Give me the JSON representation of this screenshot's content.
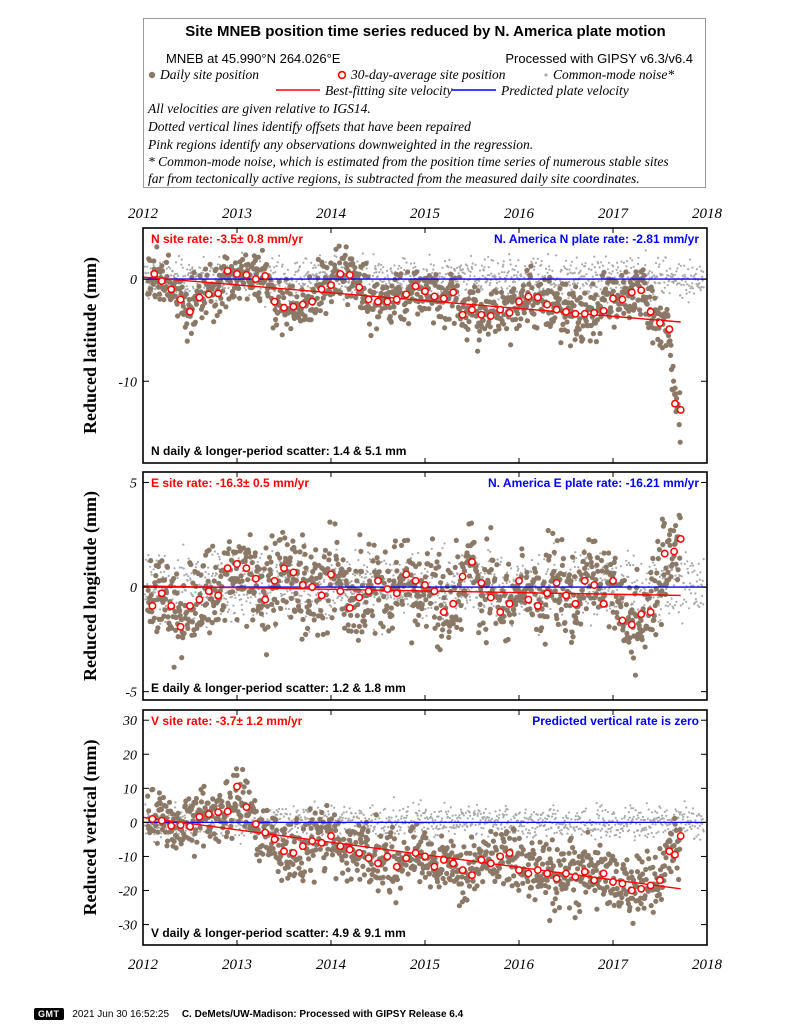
{
  "legend": {
    "title": "Site MNEB position time series reduced by N. America plate motion",
    "site_location": "MNEB at 45.990°N 264.026°E",
    "processing": "Processed with GIPSY v6.3/v6.4",
    "key_daily": "Daily site position",
    "key_avg": "30-day-average site position",
    "key_cm": "Common-mode noise*",
    "key_best": "Best-fitting site velocity",
    "key_pred": "Predicted plate velocity",
    "note1": "All velocities are given relative to IGS14.",
    "note2": "Dotted vertical lines identify offsets that have been repaired",
    "note3": "Pink regions identify any observations downweighted in the regression.",
    "note4": "* Common-mode noise, which is estimated from the position time series of numerous stable sites",
    "note5": "far from tectonically active regions, is subtracted from the measured daily site coordinates."
  },
  "colors": {
    "daily": "#8b7866",
    "common_mode": "#a9a9a9",
    "best_fit": "#ff0000",
    "predicted": "#0000ff",
    "avg_marker": "#ff0000"
  },
  "chart_data": [
    {
      "type": "scatter",
      "component": "N",
      "ylabel": "Reduced latitude (mm)",
      "xlim": [
        2012.0,
        2018.0
      ],
      "ylim": [
        -18,
        5
      ],
      "x_ticks": [
        "2012",
        "2013",
        "2014",
        "2015",
        "2016",
        "2017",
        "2018"
      ],
      "y_ticks": [
        0,
        -10
      ],
      "site_rate_label": "N site rate:  -3.5± 0.8 mm/yr",
      "plate_rate_label": "N. America N plate rate: -2.81 mm/yr",
      "scatter_label": "N daily & longer-period scatter:   1.4 &   5.1 mm",
      "best_fit_line": {
        "x": [
          2012.0,
          2017.72
        ],
        "y": [
          0.2,
          -4.2
        ]
      },
      "predicted_line_y": 0,
      "avg_series": [
        [
          2012.12,
          0.5
        ],
        [
          2012.2,
          -0.2
        ],
        [
          2012.3,
          -1.0
        ],
        [
          2012.4,
          -2.0
        ],
        [
          2012.5,
          -3.2
        ],
        [
          2012.6,
          -1.8
        ],
        [
          2012.7,
          -1.5
        ],
        [
          2012.8,
          -1.4
        ],
        [
          2012.9,
          0.8
        ],
        [
          2013.0,
          0.5
        ],
        [
          2013.1,
          0.4
        ],
        [
          2013.2,
          0.0
        ],
        [
          2013.3,
          0.3
        ],
        [
          2013.4,
          -2.2
        ],
        [
          2013.5,
          -2.8
        ],
        [
          2013.6,
          -2.7
        ],
        [
          2013.7,
          -2.5
        ],
        [
          2013.8,
          -2.2
        ],
        [
          2013.9,
          -1.0
        ],
        [
          2014.0,
          -0.6
        ],
        [
          2014.1,
          0.5
        ],
        [
          2014.2,
          0.4
        ],
        [
          2014.3,
          -0.8
        ],
        [
          2014.4,
          -2.0
        ],
        [
          2014.5,
          -2.2
        ],
        [
          2014.6,
          -2.2
        ],
        [
          2014.7,
          -2.0
        ],
        [
          2014.8,
          -1.5
        ],
        [
          2014.9,
          -0.7
        ],
        [
          2015.0,
          -1.2
        ],
        [
          2015.1,
          -1.7
        ],
        [
          2015.2,
          -1.9
        ],
        [
          2015.3,
          -1.3
        ],
        [
          2015.4,
          -3.5
        ],
        [
          2015.5,
          -3.0
        ],
        [
          2015.6,
          -3.5
        ],
        [
          2015.7,
          -3.6
        ],
        [
          2015.8,
          -3.0
        ],
        [
          2015.9,
          -3.3
        ],
        [
          2016.0,
          -2.2
        ],
        [
          2016.1,
          -1.7
        ],
        [
          2016.2,
          -1.8
        ],
        [
          2016.3,
          -2.5
        ],
        [
          2016.4,
          -3.0
        ],
        [
          2016.5,
          -3.2
        ],
        [
          2016.6,
          -3.4
        ],
        [
          2016.7,
          -3.4
        ],
        [
          2016.8,
          -3.3
        ],
        [
          2016.9,
          -3.1
        ],
        [
          2017.0,
          -1.9
        ],
        [
          2017.1,
          -2.0
        ],
        [
          2017.2,
          -1.3
        ],
        [
          2017.3,
          -1.1
        ],
        [
          2017.4,
          -3.2
        ],
        [
          2017.5,
          -4.3
        ],
        [
          2017.6,
          -4.9
        ],
        [
          2017.66,
          -12.2
        ],
        [
          2017.72,
          -12.8
        ]
      ]
    },
    {
      "type": "scatter",
      "component": "E",
      "ylabel": "Reduced longitude (mm)",
      "xlim": [
        2012.0,
        2018.0
      ],
      "ylim": [
        -5.4,
        5.5
      ],
      "x_ticks": [
        "2012",
        "2013",
        "2014",
        "2015",
        "2016",
        "2017",
        "2018"
      ],
      "y_ticks": [
        5,
        0,
        -5
      ],
      "site_rate_label": "E site rate:  -16.3± 0.5 mm/yr",
      "plate_rate_label": "N. America E plate rate: -16.21 mm/yr",
      "scatter_label": "E daily & longer-period scatter:   1.2 &   1.8 mm",
      "best_fit_line": {
        "x": [
          2012.0,
          2017.72
        ],
        "y": [
          0.05,
          -0.4
        ]
      },
      "predicted_line_y": 0,
      "avg_series": [
        [
          2012.1,
          -0.9
        ],
        [
          2012.2,
          -0.3
        ],
        [
          2012.3,
          -0.9
        ],
        [
          2012.4,
          -1.9
        ],
        [
          2012.5,
          -0.9
        ],
        [
          2012.6,
          -0.6
        ],
        [
          2012.7,
          -0.2
        ],
        [
          2012.8,
          -0.4
        ],
        [
          2012.9,
          0.9
        ],
        [
          2013.0,
          1.1
        ],
        [
          2013.1,
          0.9
        ],
        [
          2013.2,
          0.4
        ],
        [
          2013.3,
          -0.6
        ],
        [
          2013.4,
          0.3
        ],
        [
          2013.5,
          0.9
        ],
        [
          2013.6,
          0.7
        ],
        [
          2013.7,
          0.1
        ],
        [
          2013.8,
          0.0
        ],
        [
          2013.9,
          -0.4
        ],
        [
          2014.0,
          0.6
        ],
        [
          2014.1,
          -0.2
        ],
        [
          2014.2,
          -1.0
        ],
        [
          2014.3,
          -0.5
        ],
        [
          2014.4,
          -0.2
        ],
        [
          2014.5,
          0.3
        ],
        [
          2014.6,
          -0.1
        ],
        [
          2014.7,
          -0.3
        ],
        [
          2014.8,
          0.6
        ],
        [
          2014.9,
          0.3
        ],
        [
          2015.0,
          0.1
        ],
        [
          2015.1,
          -0.2
        ],
        [
          2015.2,
          -1.2
        ],
        [
          2015.3,
          -0.8
        ],
        [
          2015.4,
          0.5
        ],
        [
          2015.5,
          1.2
        ],
        [
          2015.6,
          0.2
        ],
        [
          2015.7,
          -0.5
        ],
        [
          2015.8,
          -1.2
        ],
        [
          2015.9,
          -0.8
        ],
        [
          2016.0,
          0.3
        ],
        [
          2016.1,
          -0.6
        ],
        [
          2016.2,
          -0.9
        ],
        [
          2016.3,
          -0.3
        ],
        [
          2016.4,
          0.2
        ],
        [
          2016.5,
          -0.4
        ],
        [
          2016.6,
          -0.8
        ],
        [
          2016.7,
          0.3
        ],
        [
          2016.8,
          0.1
        ],
        [
          2016.9,
          -0.8
        ],
        [
          2017.0,
          0.3
        ],
        [
          2017.1,
          -1.6
        ],
        [
          2017.2,
          -1.8
        ],
        [
          2017.3,
          -1.3
        ],
        [
          2017.4,
          -1.2
        ],
        [
          2017.55,
          1.6
        ],
        [
          2017.65,
          1.7
        ],
        [
          2017.72,
          2.3
        ]
      ]
    },
    {
      "type": "scatter",
      "component": "V",
      "ylabel": "Reduced vertical (mm)",
      "xlim": [
        2012.0,
        2018.0
      ],
      "ylim": [
        -36,
        33
      ],
      "x_ticks": [
        "2012",
        "2013",
        "2014",
        "2015",
        "2016",
        "2017",
        "2018"
      ],
      "y_ticks": [
        30,
        20,
        10,
        0,
        -10,
        -20,
        -30
      ],
      "site_rate_label": "V site rate:  -3.7± 1.2 mm/yr",
      "plate_rate_label": "Predicted vertical rate is zero",
      "scatter_label": "V daily & longer-period scatter:   4.9 &   9.1 mm",
      "best_fit_line": {
        "x": [
          2012.0,
          2017.72
        ],
        "y": [
          1.5,
          -19.5
        ]
      },
      "predicted_line_y": 0,
      "avg_series": [
        [
          2012.1,
          1.0
        ],
        [
          2012.2,
          0.5
        ],
        [
          2012.3,
          -1.0
        ],
        [
          2012.4,
          -0.8
        ],
        [
          2012.5,
          -1.2
        ],
        [
          2012.6,
          1.6
        ],
        [
          2012.7,
          2.4
        ],
        [
          2012.8,
          3.0
        ],
        [
          2012.9,
          3.2
        ],
        [
          2013.0,
          10.5
        ],
        [
          2013.1,
          4.5
        ],
        [
          2013.2,
          -0.5
        ],
        [
          2013.3,
          -3.0
        ],
        [
          2013.4,
          -5.0
        ],
        [
          2013.5,
          -8.5
        ],
        [
          2013.6,
          -9.0
        ],
        [
          2013.7,
          -7.0
        ],
        [
          2013.8,
          -5.5
        ],
        [
          2013.9,
          -6.0
        ],
        [
          2014.0,
          -4.0
        ],
        [
          2014.1,
          -7.0
        ],
        [
          2014.2,
          -8.0
        ],
        [
          2014.3,
          -9.0
        ],
        [
          2014.4,
          -10.5
        ],
        [
          2014.5,
          -12.0
        ],
        [
          2014.6,
          -10.0
        ],
        [
          2014.7,
          -13.0
        ],
        [
          2014.8,
          -10.5
        ],
        [
          2014.9,
          -9.0
        ],
        [
          2015.0,
          -10.0
        ],
        [
          2015.1,
          -13.0
        ],
        [
          2015.2,
          -11.0
        ],
        [
          2015.3,
          -12.0
        ],
        [
          2015.4,
          -14.0
        ],
        [
          2015.5,
          -15.5
        ],
        [
          2015.6,
          -11.0
        ],
        [
          2015.7,
          -12.0
        ],
        [
          2015.8,
          -10.0
        ],
        [
          2015.9,
          -9.0
        ],
        [
          2016.0,
          -14.0
        ],
        [
          2016.1,
          -15.0
        ],
        [
          2016.2,
          -14.0
        ],
        [
          2016.3,
          -15.0
        ],
        [
          2016.4,
          -16.5
        ],
        [
          2016.5,
          -15.0
        ],
        [
          2016.6,
          -16.0
        ],
        [
          2016.7,
          -14.5
        ],
        [
          2016.8,
          -17.0
        ],
        [
          2016.9,
          -15.0
        ],
        [
          2017.0,
          -17.5
        ],
        [
          2017.1,
          -18.0
        ],
        [
          2017.2,
          -20.0
        ],
        [
          2017.3,
          -19.5
        ],
        [
          2017.4,
          -18.5
        ],
        [
          2017.5,
          -17.0
        ],
        [
          2017.6,
          -8.5
        ],
        [
          2017.66,
          -9.5
        ],
        [
          2017.72,
          -4.0
        ]
      ]
    }
  ],
  "footer": {
    "logo": "GMT",
    "date": "2021 Jun 30 16:52:25",
    "credit": "C. DeMets/UW-Madison: Processed with GIPSY Release 6.4"
  }
}
